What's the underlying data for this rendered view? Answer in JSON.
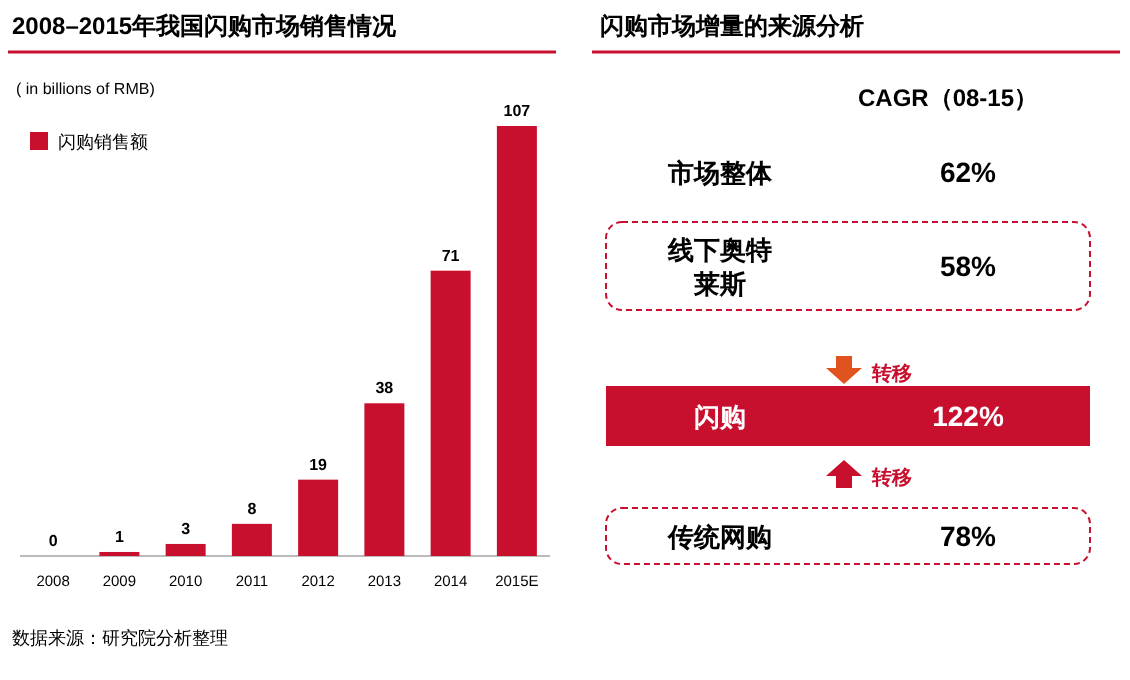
{
  "chart_data": [
    {
      "type": "bar",
      "title": "2008–2015年我国闪购市场销售情况",
      "ylabel": "( in billions of RMB)",
      "categories": [
        "2008",
        "2009",
        "2010",
        "2011",
        "2012",
        "2013",
        "2014",
        "2015E"
      ],
      "series": [
        {
          "name": "闪购销售额",
          "color": "#c8102e",
          "values": [
            0,
            1,
            3,
            8,
            19,
            38,
            71,
            107
          ]
        }
      ],
      "data_labels": true,
      "legend": "top left",
      "annotations": [
        "数据来源：研究院分析整理"
      ]
    },
    {
      "type": "other",
      "title": "闪购市场增量的来源分析",
      "subtitle": "CAGR（08-15）",
      "categories": [
        "市场整体",
        "线下奥特莱斯",
        "闪购",
        "传统网购"
      ],
      "values": [
        62,
        58,
        122,
        78
      ],
      "value_labels": [
        "62%",
        "58%",
        "122%",
        "78%"
      ],
      "colors": [
        "#ffffff",
        "#ffffff",
        "#c8102e",
        "#ffffff"
      ],
      "annotations": [
        "转移",
        "转移"
      ]
    }
  ]
}
